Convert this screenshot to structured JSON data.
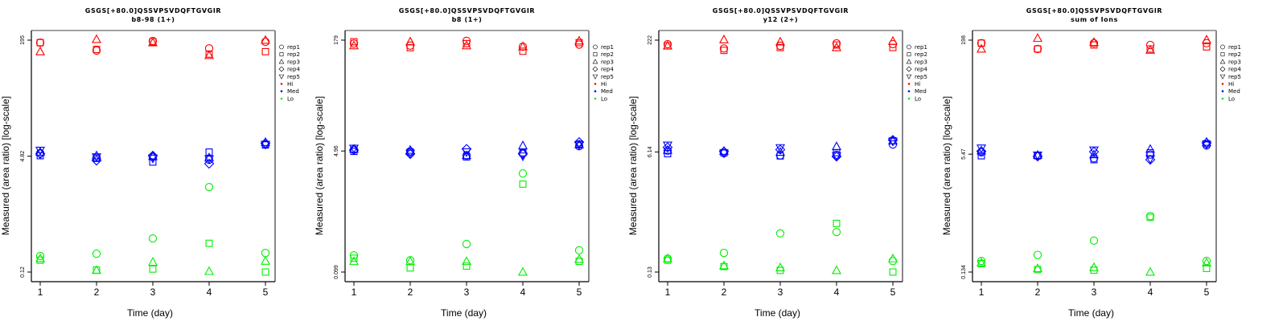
{
  "colors": {
    "Hi": "#ff0000",
    "Med": "#0000ff",
    "Lo": "#00ee00"
  },
  "legend": {
    "reps": [
      {
        "label": "rep1",
        "shape": "circle"
      },
      {
        "label": "rep2",
        "shape": "square"
      },
      {
        "label": "rep3",
        "shape": "triangle-up"
      },
      {
        "label": "rep4",
        "shape": "diamond"
      },
      {
        "label": "rep5",
        "shape": "triangle-down"
      }
    ],
    "levels": [
      {
        "label": "Hi",
        "color": "#ff0000"
      },
      {
        "label": "Med",
        "color": "#0000ff"
      },
      {
        "label": "Lo",
        "color": "#00ee00"
      }
    ]
  },
  "chart_data": [
    {
      "type": "scatter",
      "title": "GSGS[+80.0]QSSVPSVDQFTGVGIR",
      "subtitle": "b8-98 (1+)",
      "xlabel": "Time (day)",
      "ylabel": "Measured (area ratio) [log-scale]",
      "yscale": "log",
      "x_ticks": [
        "1",
        "2",
        "3",
        "4",
        "5"
      ],
      "y_ticks": [
        "195",
        "4.82",
        "0.12"
      ],
      "y_tick_values": [
        195,
        4.82,
        0.12
      ],
      "ylim": [
        0.085,
        270
      ],
      "xlim": [
        0.85,
        5.15
      ],
      "legend_position": "right",
      "series": [
        {
          "level": "Hi",
          "rep": "rep1",
          "x": [
            1,
            2,
            3,
            4,
            5
          ],
          "values": [
            180,
            140,
            190,
            150,
            185
          ]
        },
        {
          "level": "Hi",
          "rep": "rep2",
          "x": [
            1,
            2,
            3,
            4,
            5
          ],
          "values": [
            180,
            145,
            185,
            125,
            135
          ]
        },
        {
          "level": "Hi",
          "rep": "rep3",
          "x": [
            1,
            2,
            3,
            4,
            5
          ],
          "values": [
            135,
            200,
            180,
            120,
            195
          ]
        },
        {
          "level": "Med",
          "rep": "rep1",
          "x": [
            1,
            2,
            3,
            4,
            5
          ],
          "values": [
            5.3,
            4.6,
            4.7,
            4.3,
            7.1
          ]
        },
        {
          "level": "Med",
          "rep": "rep2",
          "x": [
            1,
            2,
            3,
            4,
            5
          ],
          "values": [
            4.9,
            4.5,
            4.0,
            5.5,
            6.9
          ]
        },
        {
          "level": "Med",
          "rep": "rep3",
          "x": [
            1,
            2,
            3,
            4,
            5
          ],
          "values": [
            5.5,
            4.9,
            4.8,
            4.6,
            7.5
          ]
        },
        {
          "level": "Med",
          "rep": "rep4",
          "x": [
            1,
            2,
            3,
            4,
            5
          ],
          "values": [
            5.2,
            4.2,
            4.9,
            3.8,
            7.3
          ]
        },
        {
          "level": "Med",
          "rep": "rep5",
          "x": [
            1,
            2,
            3,
            4,
            5
          ],
          "values": [
            5.8,
            4.7,
            4.5,
            4.4,
            7.0
          ]
        },
        {
          "level": "Lo",
          "rep": "rep1",
          "x": [
            1,
            2,
            3,
            4,
            5
          ],
          "values": [
            0.2,
            0.215,
            0.35,
            1.8,
            0.22
          ]
        },
        {
          "level": "Lo",
          "rep": "rep2",
          "x": [
            1,
            2,
            3,
            4,
            5
          ],
          "values": [
            0.175,
            0.128,
            0.132,
            0.3,
            0.12
          ]
        },
        {
          "level": "Lo",
          "rep": "rep3",
          "x": [
            1,
            2,
            3,
            4,
            5
          ],
          "values": [
            0.185,
            0.127,
            0.165,
            0.123,
            0.17
          ]
        }
      ]
    },
    {
      "type": "scatter",
      "title": "GSGS[+80.0]QSSVPSVDQFTGVGIR",
      "subtitle": "b8 (1+)",
      "xlabel": "Time (day)",
      "ylabel": "Measured (area ratio) [log-scale]",
      "yscale": "log",
      "x_ticks": [
        "1",
        "2",
        "3",
        "4",
        "5"
      ],
      "y_ticks": [
        "179",
        "4.96",
        "0.099"
      ],
      "y_tick_values": [
        179,
        4.96,
        0.099
      ],
      "ylim": [
        0.07,
        245
      ],
      "xlim": [
        0.85,
        5.15
      ],
      "legend_position": "right",
      "series": [
        {
          "level": "Hi",
          "rep": "rep1",
          "x": [
            1,
            2,
            3,
            4,
            5
          ],
          "values": [
            160,
            150,
            175,
            145,
            155
          ]
        },
        {
          "level": "Hi",
          "rep": "rep2",
          "x": [
            1,
            2,
            3,
            4,
            5
          ],
          "values": [
            170,
            140,
            160,
            125,
            165
          ]
        },
        {
          "level": "Hi",
          "rep": "rep3",
          "x": [
            1,
            2,
            3,
            4,
            5
          ],
          "values": [
            150,
            170,
            150,
            145,
            175
          ]
        },
        {
          "level": "Med",
          "rep": "rep1",
          "x": [
            1,
            2,
            3,
            4,
            5
          ],
          "values": [
            5.2,
            4.9,
            4.3,
            4.6,
            5.8
          ]
        },
        {
          "level": "Med",
          "rep": "rep2",
          "x": [
            1,
            2,
            3,
            4,
            5
          ],
          "values": [
            4.9,
            4.8,
            4.1,
            4.7,
            6.2
          ]
        },
        {
          "level": "Med",
          "rep": "rep3",
          "x": [
            1,
            2,
            3,
            4,
            5
          ],
          "values": [
            5.3,
            5.1,
            4.3,
            5.9,
            6.1
          ]
        },
        {
          "level": "Med",
          "rep": "rep4",
          "x": [
            1,
            2,
            3,
            4,
            5
          ],
          "values": [
            5.1,
            4.5,
            5.3,
            4.5,
            6.6
          ]
        },
        {
          "level": "Med",
          "rep": "rep5",
          "x": [
            1,
            2,
            3,
            4,
            5
          ],
          "values": [
            5.4,
            4.6,
            4.8,
            4.2,
            6.0
          ]
        },
        {
          "level": "Lo",
          "rep": "rep1",
          "x": [
            1,
            2,
            3,
            4,
            5
          ],
          "values": [
            0.17,
            0.145,
            0.245,
            2.4,
            0.2
          ]
        },
        {
          "level": "Lo",
          "rep": "rep2",
          "x": [
            1,
            2,
            3,
            4,
            5
          ],
          "values": [
            0.155,
            0.113,
            0.12,
            1.7,
            0.14
          ]
        },
        {
          "level": "Lo",
          "rep": "rep3",
          "x": [
            1,
            2,
            3,
            4,
            5
          ],
          "values": [
            0.14,
            0.14,
            0.14,
            0.099,
            0.15
          ]
        }
      ]
    },
    {
      "type": "scatter",
      "title": "GSGS[+80.0]QSSVPSVDQFTGVGIR",
      "subtitle": "y12 (2+)",
      "xlabel": "Time (day)",
      "ylabel": "Measured (area ratio) [log-scale]",
      "yscale": "log",
      "x_ticks": [
        "1",
        "2",
        "3",
        "4",
        "5"
      ],
      "y_ticks": [
        "222",
        "6.14",
        "0.13"
      ],
      "y_tick_values": [
        222,
        6.14,
        0.13
      ],
      "ylim": [
        0.093,
        305
      ],
      "xlim": [
        0.85,
        5.15
      ],
      "legend_position": "right",
      "series": [
        {
          "level": "Hi",
          "rep": "rep1",
          "x": [
            1,
            2,
            3,
            4,
            5
          ],
          "values": [
            195,
            170,
            185,
            200,
            195
          ]
        },
        {
          "level": "Hi",
          "rep": "rep2",
          "x": [
            1,
            2,
            3,
            4,
            5
          ],
          "values": [
            185,
            160,
            175,
            190,
            175
          ]
        },
        {
          "level": "Hi",
          "rep": "rep3",
          "x": [
            1,
            2,
            3,
            4,
            5
          ],
          "values": [
            185,
            225,
            210,
            175,
            215
          ]
        },
        {
          "level": "Med",
          "rep": "rep1",
          "x": [
            1,
            2,
            3,
            4,
            5
          ],
          "values": [
            6.4,
            5.9,
            5.5,
            5.6,
            7.8
          ]
        },
        {
          "level": "Med",
          "rep": "rep2",
          "x": [
            1,
            2,
            3,
            4,
            5
          ],
          "values": [
            5.8,
            6.0,
            5.4,
            6.0,
            8.8
          ]
        },
        {
          "level": "Med",
          "rep": "rep3",
          "x": [
            1,
            2,
            3,
            4,
            5
          ],
          "values": [
            6.5,
            6.3,
            6.1,
            7.3,
            8.8
          ]
        },
        {
          "level": "Med",
          "rep": "rep4",
          "x": [
            1,
            2,
            3,
            4,
            5
          ],
          "values": [
            7.1,
            6.2,
            6.6,
            5.3,
            9.0
          ]
        },
        {
          "level": "Med",
          "rep": "rep5",
          "x": [
            1,
            2,
            3,
            4,
            5
          ],
          "values": [
            7.6,
            5.9,
            7.0,
            5.4,
            8.6
          ]
        },
        {
          "level": "Lo",
          "rep": "rep1",
          "x": [
            1,
            2,
            3,
            4,
            5
          ],
          "values": [
            0.2,
            0.24,
            0.45,
            0.47,
            0.185
          ]
        },
        {
          "level": "Lo",
          "rep": "rep2",
          "x": [
            1,
            2,
            3,
            4,
            5
          ],
          "values": [
            0.19,
            0.155,
            0.137,
            0.62,
            0.13
          ]
        },
        {
          "level": "Lo",
          "rep": "rep3",
          "x": [
            1,
            2,
            3,
            4,
            5
          ],
          "values": [
            0.2,
            0.16,
            0.15,
            0.137,
            0.2
          ]
        }
      ]
    },
    {
      "type": "scatter",
      "title": "GSGS[+80.0]QSSVPSVDQFTGVGIR",
      "subtitle": "sum of Ions",
      "xlabel": "Time (day)",
      "ylabel": "Measured (area ratio) [log-scale]",
      "yscale": "log",
      "x_ticks": [
        "1",
        "2",
        "3",
        "4",
        "5"
      ],
      "y_ticks": [
        "198",
        "5.47",
        "0.134"
      ],
      "y_tick_values": [
        198,
        5.47,
        0.134
      ],
      "ylim": [
        0.095,
        275
      ],
      "xlim": [
        0.85,
        5.15
      ],
      "legend_position": "right",
      "series": [
        {
          "level": "Hi",
          "rep": "rep1",
          "x": [
            1,
            2,
            3,
            4,
            5
          ],
          "values": [
            180,
            150,
            180,
            170,
            180
          ]
        },
        {
          "level": "Hi",
          "rep": "rep2",
          "x": [
            1,
            2,
            3,
            4,
            5
          ],
          "values": [
            180,
            150,
            170,
            150,
            160
          ]
        },
        {
          "level": "Hi",
          "rep": "rep3",
          "x": [
            1,
            2,
            3,
            4,
            5
          ],
          "values": [
            150,
            210,
            185,
            145,
            200
          ]
        },
        {
          "level": "Med",
          "rep": "rep1",
          "x": [
            1,
            2,
            3,
            4,
            5
          ],
          "values": [
            5.8,
            5.2,
            4.8,
            5.4,
            7.2
          ]
        },
        {
          "level": "Med",
          "rep": "rep2",
          "x": [
            1,
            2,
            3,
            4,
            5
          ],
          "values": [
            5.2,
            5.2,
            4.6,
            5.7,
            7.6
          ]
        },
        {
          "level": "Med",
          "rep": "rep3",
          "x": [
            1,
            2,
            3,
            4,
            5
          ],
          "values": [
            6.1,
            5.3,
            5.4,
            6.4,
            8.0
          ]
        },
        {
          "level": "Med",
          "rep": "rep4",
          "x": [
            1,
            2,
            3,
            4,
            5
          ],
          "values": [
            6.0,
            5.1,
            5.9,
            4.6,
            7.8
          ]
        },
        {
          "level": "Med",
          "rep": "rep5",
          "x": [
            1,
            2,
            3,
            4,
            5
          ],
          "values": [
            6.6,
            5.3,
            6.2,
            4.7,
            7.4
          ]
        },
        {
          "level": "Lo",
          "rep": "rep1",
          "x": [
            1,
            2,
            3,
            4,
            5
          ],
          "values": [
            0.19,
            0.23,
            0.36,
            0.78,
            0.19
          ]
        },
        {
          "level": "Lo",
          "rep": "rep2",
          "x": [
            1,
            2,
            3,
            4,
            5
          ],
          "values": [
            0.175,
            0.145,
            0.142,
            0.75,
            0.15
          ]
        },
        {
          "level": "Lo",
          "rep": "rep3",
          "x": [
            1,
            2,
            3,
            4,
            5
          ],
          "values": [
            0.18,
            0.15,
            0.155,
            0.134,
            0.18
          ]
        }
      ]
    }
  ]
}
